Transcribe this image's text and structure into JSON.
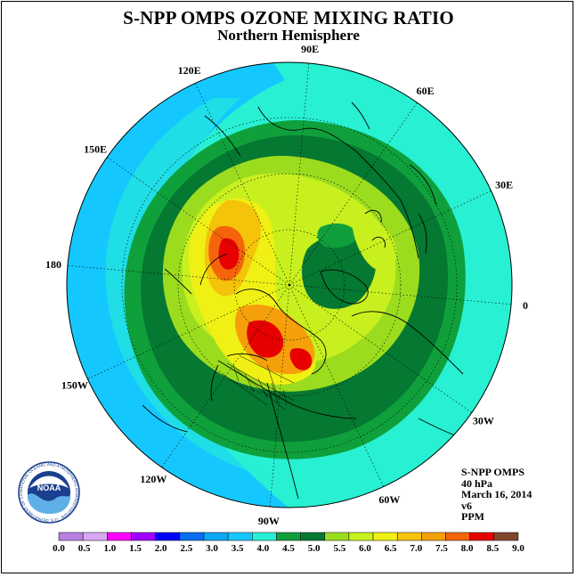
{
  "header": {
    "title": "S-NPP OMPS OZONE MIXING RATIO",
    "subtitle": "Northern Hemisphere"
  },
  "map": {
    "projection": "north polar stereographic",
    "longitude_labels": [
      {
        "text": "90E",
        "deg": 90
      },
      {
        "text": "60E",
        "deg": 60
      },
      {
        "text": "30E",
        "deg": 30
      },
      {
        "text": "0",
        "deg": 0
      },
      {
        "text": "30W",
        "deg": -30
      },
      {
        "text": "60W",
        "deg": -60
      },
      {
        "text": "90W",
        "deg": -90
      },
      {
        "text": "120W",
        "deg": -120
      },
      {
        "text": "150W",
        "deg": -150
      },
      {
        "text": "180",
        "deg": 180
      },
      {
        "text": "150E",
        "deg": 150
      },
      {
        "text": "120E",
        "deg": 120
      }
    ]
  },
  "info": {
    "product": "S-NPP OMPS",
    "level": "40 hPa",
    "date": "March 16, 2014",
    "version": "v6",
    "units": "PPM"
  },
  "colorbar": {
    "labels": [
      "0.0",
      "0.5",
      "1.0",
      "1.5",
      "2.0",
      "2.5",
      "3.0",
      "3.5",
      "4.0",
      "4.5",
      "5.0",
      "5.5",
      "6.0",
      "6.5",
      "7.0",
      "7.5",
      "8.0",
      "8.5",
      "9.0"
    ],
    "colors": [
      "#b77fe0",
      "#d8a8f2",
      "#ff00ff",
      "#a000ff",
      "#0000ff",
      "#0a6ef0",
      "#0aa8f5",
      "#14c8ff",
      "#28f0d2",
      "#0fa03c",
      "#057832",
      "#9bdc1e",
      "#c8f01e",
      "#f0f014",
      "#f5c30a",
      "#f5a00a",
      "#f5640a",
      "#e60000",
      "#82462d"
    ]
  },
  "logo": {
    "text": "NOAA",
    "ring_text": "NATIONAL OCEANIC AND ATMOSPHERIC ADMINISTRATION · U.S. DEPARTMENT OF COMMERCE"
  }
}
